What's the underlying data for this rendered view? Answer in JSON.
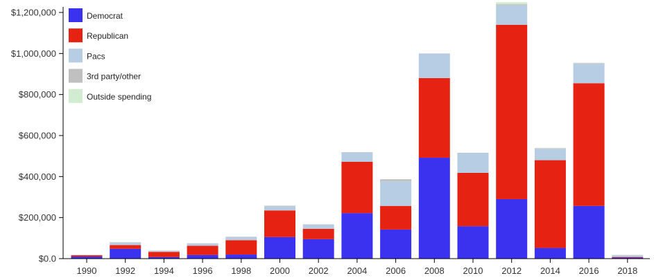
{
  "chart_data": {
    "type": "bar",
    "stacked": true,
    "categories": [
      "1990",
      "1992",
      "1994",
      "1996",
      "1998",
      "2000",
      "2002",
      "2004",
      "2006",
      "2008",
      "2010",
      "2012",
      "2014",
      "2016",
      "2018"
    ],
    "series": [
      {
        "name": "Democrat",
        "color": "#3b32f0",
        "values": [
          10000,
          48000,
          8000,
          18000,
          20000,
          105000,
          95000,
          222000,
          142000,
          492000,
          158000,
          290000,
          52000,
          257000,
          5000
        ]
      },
      {
        "name": "Republican",
        "color": "#e62313",
        "values": [
          7000,
          18000,
          25000,
          45000,
          70000,
          130000,
          50000,
          250000,
          115000,
          388000,
          260000,
          850000,
          428000,
          598000,
          3000
        ]
      },
      {
        "name": "Pacs",
        "color": "#b6cde3",
        "values": [
          1000,
          12000,
          5000,
          10000,
          15000,
          20000,
          20000,
          45000,
          120000,
          118000,
          96000,
          95000,
          55000,
          95000,
          8000
        ]
      },
      {
        "name": "3rd party/other",
        "color": "#c0c0c0",
        "values": [
          0,
          2000,
          1000,
          2000,
          2000,
          3000,
          2000,
          2000,
          10000,
          2000,
          2000,
          5000,
          3000,
          3000,
          2000
        ]
      },
      {
        "name": "Outside spending",
        "color": "#d2ecd2",
        "values": [
          0,
          0,
          0,
          0,
          0,
          0,
          0,
          0,
          0,
          0,
          0,
          10000,
          2000,
          2000,
          0
        ]
      }
    ],
    "y_ticks": [
      "$0.0",
      "$200,000",
      "$400,000",
      "$600,000",
      "$800,000",
      "$1,000,000",
      "$1,200,000"
    ],
    "ylim": [
      0,
      1200000
    ],
    "legend_position": "top-left",
    "grid": false
  }
}
